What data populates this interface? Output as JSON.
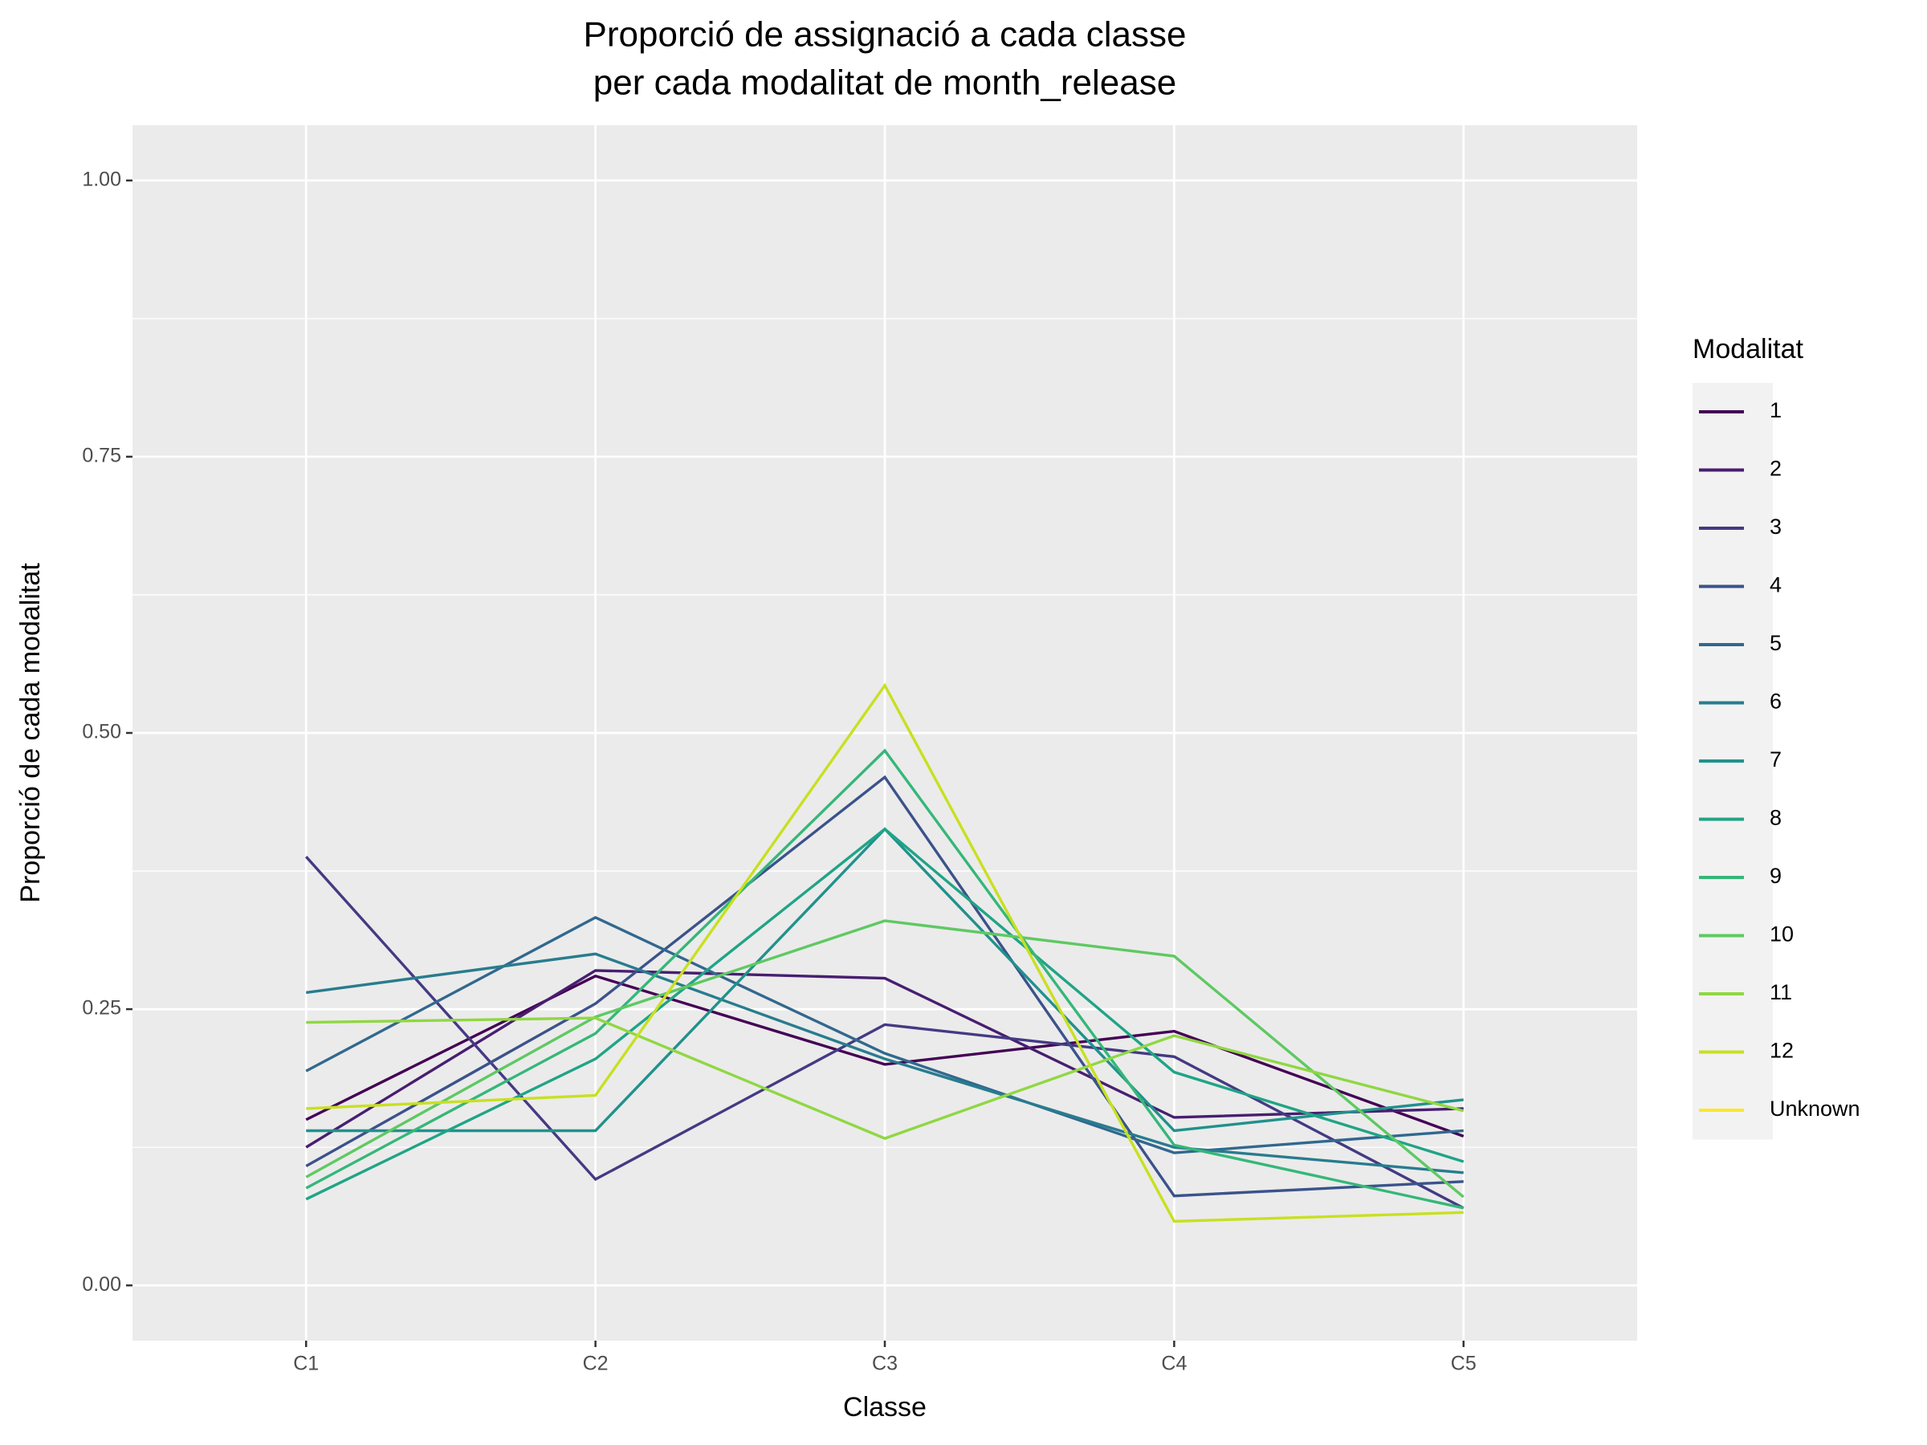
{
  "chart_data": {
    "type": "line",
    "title": "Proporció de assignació a cada classe",
    "subtitle": "per cada modalitat de month_release",
    "x_label": "Classe",
    "y_label": "Proporció de cada modalitat",
    "legend_title": "Modalitat",
    "legend": "right",
    "categories": [
      "C1",
      "C2",
      "C3",
      "C4",
      "C5"
    ],
    "ylim": [
      -0.05,
      1.05
    ],
    "yticks": [
      {
        "value": 0,
        "label": "0.00"
      },
      {
        "value": 0.25,
        "label": "0.25"
      },
      {
        "value": 0.5,
        "label": "0.50"
      },
      {
        "value": 0.75,
        "label": "0.75"
      },
      {
        "value": 1,
        "label": "1.00"
      }
    ],
    "grid": true,
    "series": [
      {
        "name": "1",
        "color": "#440154",
        "values": [
          0.15,
          0.28,
          0.2,
          0.23,
          0.135
        ]
      },
      {
        "name": "2",
        "color": "#481e70",
        "values": [
          0.125,
          0.285,
          0.278,
          0.152,
          0.16
        ]
      },
      {
        "name": "3",
        "color": "#443a83",
        "values": [
          0.388,
          0.096,
          0.236,
          0.207,
          0.07
        ]
      },
      {
        "name": "4",
        "color": "#3b528b",
        "values": [
          0.108,
          0.255,
          0.46,
          0.081,
          0.094
        ]
      },
      {
        "name": "5",
        "color": "#31688e",
        "values": [
          0.194,
          0.333,
          0.21,
          0.12,
          0.14
        ]
      },
      {
        "name": "6",
        "color": "#287c8e",
        "values": [
          0.265,
          0.3,
          0.205,
          0.125,
          0.102
        ]
      },
      {
        "name": "7",
        "color": "#21918c",
        "values": [
          0.14,
          0.14,
          0.413,
          0.14,
          0.168
        ]
      },
      {
        "name": "8",
        "color": "#20a486",
        "values": [
          0.078,
          0.205,
          0.413,
          0.193,
          0.112
        ]
      },
      {
        "name": "9",
        "color": "#35b779",
        "values": [
          0.088,
          0.228,
          0.484,
          0.127,
          0.07
        ]
      },
      {
        "name": "10",
        "color": "#5ec962",
        "values": [
          0.098,
          0.243,
          0.33,
          0.298,
          0.08
        ]
      },
      {
        "name": "11",
        "color": "#90d743",
        "values": [
          0.238,
          0.242,
          0.133,
          0.226,
          0.158
        ]
      },
      {
        "name": "12",
        "color": "#c8e020",
        "values": [
          0.16,
          0.172,
          0.543,
          0.058,
          0.066
        ]
      },
      {
        "name": "Unknown",
        "color": "#fde725",
        "values": [
          null,
          null,
          null,
          null,
          null
        ]
      }
    ]
  }
}
